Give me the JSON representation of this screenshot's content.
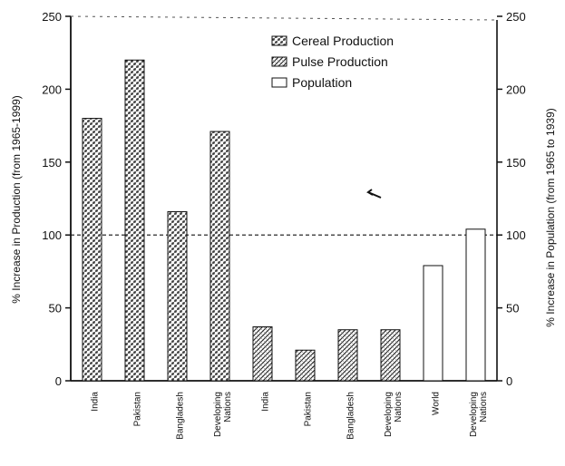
{
  "chart_data": {
    "type": "bar",
    "title": "",
    "ylabel_left": "% Increase in Production (from 1965-1999)",
    "ylabel_right": "% Increase in Population (from 1965 to 1939)",
    "ylim": [
      0,
      250
    ],
    "yticks": [
      "0",
      "50",
      "100",
      "150",
      "200",
      "250"
    ],
    "reference_line": 100,
    "legend_position": "top-right",
    "categories": [
      {
        "label": [
          "India"
        ],
        "series": "Cereal Production",
        "value": 180
      },
      {
        "label": [
          "Pakistan"
        ],
        "series": "Cereal Production",
        "value": 220
      },
      {
        "label": [
          "Bangladesh"
        ],
        "series": "Cereal Production",
        "value": 116
      },
      {
        "label": [
          "Developing",
          "Nations"
        ],
        "series": "Cereal Production",
        "value": 171
      },
      {
        "label": [
          "India"
        ],
        "series": "Pulse Production",
        "value": 37
      },
      {
        "label": [
          "Pakistan"
        ],
        "series": "Pulse Production",
        "value": 21
      },
      {
        "label": [
          "Bangladesh"
        ],
        "series": "Pulse Production",
        "value": 35
      },
      {
        "label": [
          "Developing",
          "Nations"
        ],
        "series": "Pulse Production",
        "value": 35
      },
      {
        "label": [
          "World"
        ],
        "series": "Population",
        "value": 79
      },
      {
        "label": [
          "Developing",
          "Nations"
        ],
        "series": "Population",
        "value": 104
      }
    ],
    "series": [
      {
        "name": "Cereal Production",
        "pattern": "cereal"
      },
      {
        "name": "Pulse Production",
        "pattern": "pulse"
      },
      {
        "name": "Population",
        "pattern": "none"
      }
    ]
  }
}
